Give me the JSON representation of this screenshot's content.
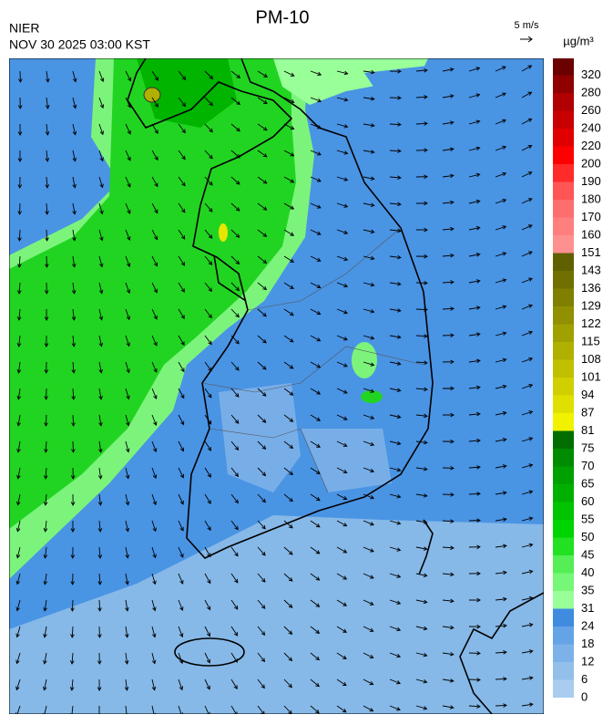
{
  "header": {
    "title": "PM-10",
    "agency": "NIER",
    "datetime": "NOV 30 2025 03:00 KST",
    "wind_scale": "5 m/s"
  },
  "colorbar": {
    "unit": "µg/m³",
    "ticks": [
      0,
      6,
      12,
      18,
      24,
      31,
      35,
      40,
      45,
      50,
      55,
      60,
      65,
      70,
      75,
      81,
      87,
      94,
      101,
      108,
      115,
      122,
      129,
      136,
      143,
      151,
      160,
      170,
      180,
      190,
      200,
      220,
      240,
      260,
      280,
      320
    ],
    "colors": [
      "#a8cdee",
      "#92c0eb",
      "#7db2e8",
      "#64a3e5",
      "#3f8be0",
      "#99ff99",
      "#77f777",
      "#55ee55",
      "#22e022",
      "#00d400",
      "#00c400",
      "#00b000",
      "#00a000",
      "#008c00",
      "#006e00",
      "#f2f200",
      "#e0e000",
      "#d0d000",
      "#c0c000",
      "#b0b000",
      "#a0a000",
      "#909000",
      "#808000",
      "#707000",
      "#606000",
      "#ff9090",
      "#ff7f7f",
      "#ff6e6e",
      "#ff5555",
      "#ff2a2a",
      "#ff0000",
      "#e00000",
      "#c80000",
      "#b00000",
      "#900000",
      "#6a0000"
    ]
  }
}
